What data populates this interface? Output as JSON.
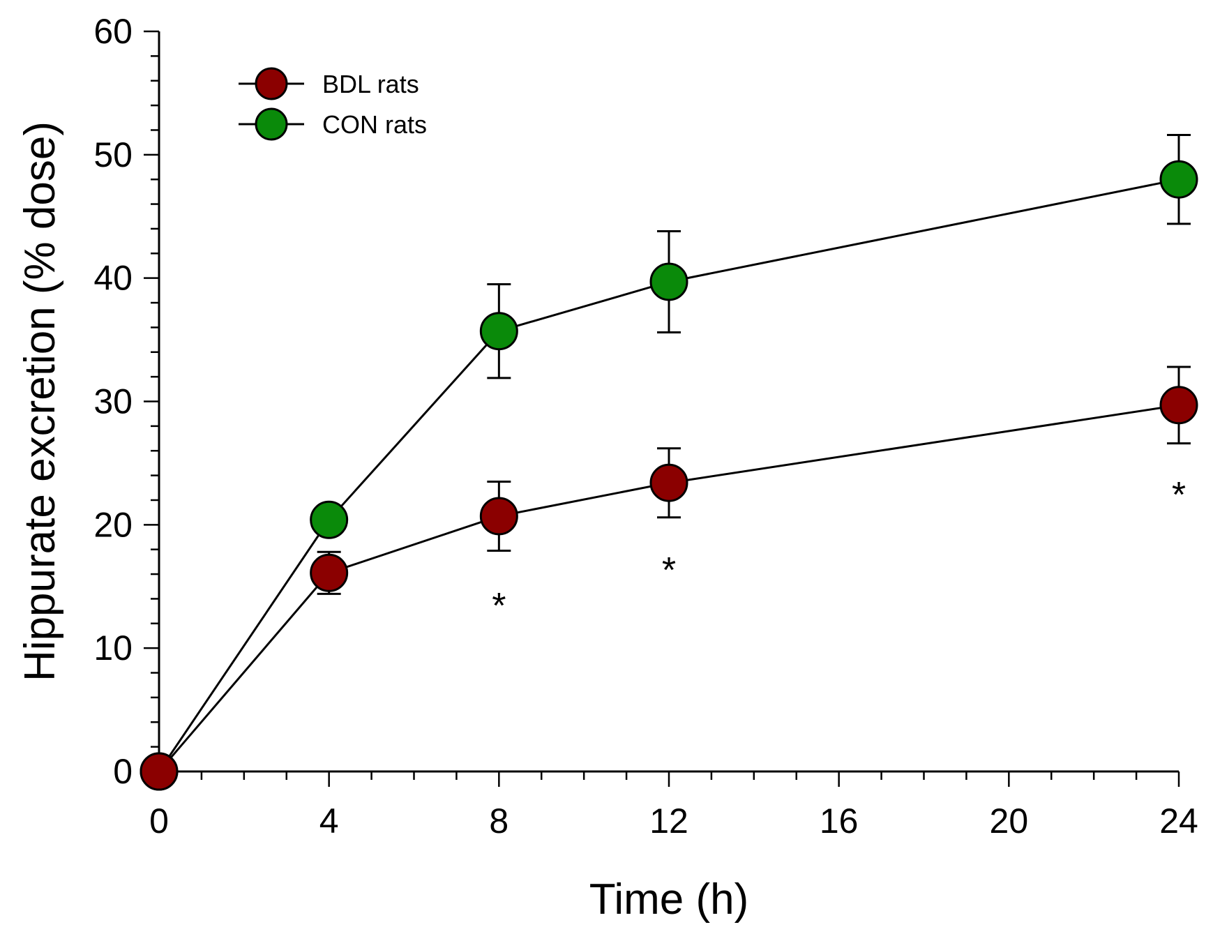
{
  "chart_data": {
    "type": "line",
    "title": "",
    "xlabel": "Time (h)",
    "ylabel": "Hippurate excretion (% dose)",
    "xlim": [
      0,
      24
    ],
    "ylim": [
      0,
      60
    ],
    "xticks": [
      "0",
      "4",
      "8",
      "12",
      "16",
      "20",
      "24"
    ],
    "yticks": [
      "0",
      "10",
      "20",
      "30",
      "40",
      "50",
      "60"
    ],
    "grid": false,
    "legend_position": "top-left",
    "series": [
      {
        "name": "BDL rats",
        "color": "#8b0000",
        "points": [
          {
            "x": 0,
            "y": 0,
            "err": 0
          },
          {
            "x": 4,
            "y": 16.1,
            "err": 1.7
          },
          {
            "x": 8,
            "y": 20.7,
            "err": 2.8
          },
          {
            "x": 12,
            "y": 23.4,
            "err": 2.8
          },
          {
            "x": 24,
            "y": 29.7,
            "err": 3.1
          }
        ]
      },
      {
        "name": "CON rats",
        "color": "#0a8a0a",
        "points": [
          {
            "x": 0,
            "y": 0,
            "err": 0
          },
          {
            "x": 4,
            "y": 20.4,
            "err": 1.1
          },
          {
            "x": 8,
            "y": 35.7,
            "err": 3.8
          },
          {
            "x": 12,
            "y": 39.7,
            "err": 4.1
          },
          {
            "x": 24,
            "y": 48.0,
            "err": 3.6
          }
        ]
      }
    ],
    "annotations": [
      {
        "text": "*",
        "x": 8,
        "y": 13.9
      },
      {
        "text": "*",
        "x": 12,
        "y": 16.8
      },
      {
        "text": "*",
        "x": 24,
        "y": 22.9
      }
    ]
  }
}
